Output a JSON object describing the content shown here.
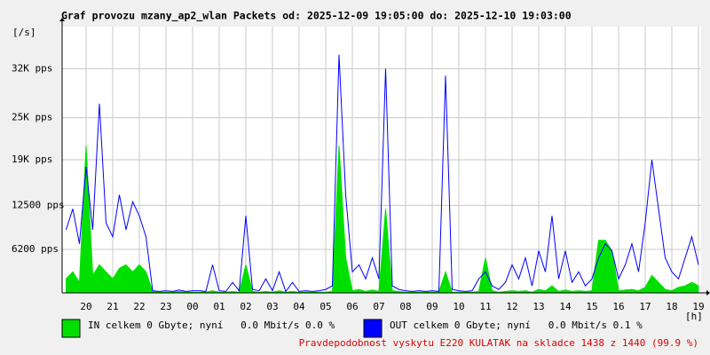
{
  "chart_data": {
    "type": "line",
    "title": "Graf provozu mzany_ap2_wlan Packets od: 2025-12-09 19:05:00 do: 2025-12-10 19:03:00",
    "y_unit": "[/s]",
    "x_unit": "[h]",
    "x": [
      19.25,
      19.5,
      19.75,
      20,
      20.25,
      20.5,
      20.75,
      21,
      21.25,
      21.5,
      21.75,
      22,
      22.25,
      22.5,
      22.75,
      23,
      23.25,
      23.5,
      23.75,
      24,
      24.25,
      24.5,
      24.75,
      25,
      25.25,
      25.5,
      25.75,
      26,
      26.25,
      26.5,
      26.75,
      27,
      27.25,
      27.5,
      27.75,
      28,
      28.25,
      28.5,
      28.75,
      29,
      29.25,
      29.5,
      29.75,
      30,
      30.25,
      30.5,
      30.75,
      31,
      31.25,
      31.5,
      31.75,
      32,
      32.25,
      32.5,
      32.75,
      33,
      33.25,
      33.5,
      33.75,
      34,
      34.25,
      34.5,
      34.75,
      35,
      35.25,
      35.5,
      35.75,
      36,
      36.25,
      36.5,
      36.75,
      37,
      37.25,
      37.5,
      37.75,
      38,
      38.25,
      38.5,
      38.75,
      39,
      39.25,
      39.5,
      39.75,
      40,
      40.25,
      40.5,
      40.75,
      41,
      41.25,
      41.5,
      41.75,
      42,
      42.25,
      42.5,
      42.75,
      43
    ],
    "series": [
      {
        "name": "IN celkem 0 Gbyte; nyní   0.0 Mbit/s 0.0 %",
        "color": "#00e000",
        "fill": true,
        "values": [
          2000,
          3000,
          1500,
          21000,
          2500,
          4000,
          3000,
          2000,
          3500,
          4000,
          3000,
          4000,
          3000,
          200,
          100,
          100,
          100,
          200,
          100,
          100,
          100,
          100,
          300,
          100,
          100,
          200,
          100,
          4000,
          200,
          100,
          200,
          100,
          300,
          100,
          200,
          100,
          100,
          100,
          100,
          100,
          200,
          21000,
          5000,
          300,
          500,
          200,
          400,
          200,
          12000,
          300,
          200,
          100,
          100,
          100,
          100,
          100,
          100,
          3000,
          100,
          100,
          100,
          100,
          200,
          5000,
          300,
          100,
          200,
          300,
          200,
          300,
          100,
          500,
          300,
          1000,
          200,
          400,
          200,
          300,
          200,
          300,
          7500,
          7500,
          6000,
          300,
          400,
          500,
          300,
          800,
          2500,
          1500,
          500,
          300,
          800,
          1000,
          1500,
          1000
        ]
      },
      {
        "name": "OUT celkem 0 Gbyte; nyní   0.0 Mbit/s 0.1 %",
        "color": "#0000ff",
        "fill": false,
        "values": [
          9000,
          12000,
          7000,
          18000,
          9000,
          27000,
          10000,
          8000,
          14000,
          9000,
          13000,
          11000,
          8000,
          300,
          200,
          300,
          200,
          400,
          200,
          300,
          300,
          200,
          4000,
          300,
          200,
          1500,
          300,
          11000,
          500,
          300,
          2000,
          300,
          3000,
          200,
          1500,
          200,
          300,
          200,
          300,
          500,
          1000,
          34000,
          14000,
          3000,
          4000,
          2000,
          5000,
          2000,
          32000,
          1000,
          500,
          300,
          200,
          300,
          200,
          300,
          200,
          31000,
          500,
          300,
          200,
          300,
          2000,
          3000,
          1000,
          500,
          1500,
          4000,
          2000,
          5000,
          1000,
          6000,
          3000,
          11000,
          2000,
          6000,
          1500,
          3000,
          1000,
          2000,
          5000,
          7000,
          6000,
          2000,
          4000,
          7000,
          3000,
          10000,
          19000,
          12000,
          5000,
          3000,
          2000,
          5000,
          8000,
          4000
        ]
      }
    ],
    "xlim": [
      19.1,
      43.1
    ],
    "xticks": [
      20,
      21,
      22,
      23,
      {
        "value": 24,
        "label": "00"
      },
      {
        "value": 25,
        "label": "01"
      },
      {
        "value": 26,
        "label": "02"
      },
      {
        "value": 27,
        "label": "03"
      },
      {
        "value": 28,
        "label": "04"
      },
      {
        "value": 29,
        "label": "05"
      },
      {
        "value": 30,
        "label": "06"
      },
      {
        "value": 31,
        "label": "07"
      },
      {
        "value": 32,
        "label": "08"
      },
      {
        "value": 33,
        "label": "09"
      },
      {
        "value": 34,
        "label": "10"
      },
      {
        "value": 35,
        "label": "11"
      },
      {
        "value": 36,
        "label": "12"
      },
      {
        "value": 37,
        "label": "13"
      },
      {
        "value": 38,
        "label": "14"
      },
      {
        "value": 39,
        "label": "15"
      },
      {
        "value": 40,
        "label": "16"
      },
      {
        "value": 41,
        "label": "17"
      },
      {
        "value": 42,
        "label": "18"
      },
      {
        "value": 43,
        "label": "19"
      }
    ],
    "ylim": [
      0,
      38000
    ],
    "yticks": [
      {
        "value": 6200,
        "label": "6200 pps"
      },
      {
        "value": 12500,
        "label": "12500 pps"
      },
      {
        "value": 19000,
        "label": "19K pps"
      },
      {
        "value": 25000,
        "label": "25K pps"
      },
      {
        "value": 32000,
        "label": "32K pps"
      }
    ],
    "grid": true,
    "note": "Pravdepodobnost vyskytu E220 KULATAK na skladce 1438 z 1440 (99.9 %)"
  }
}
